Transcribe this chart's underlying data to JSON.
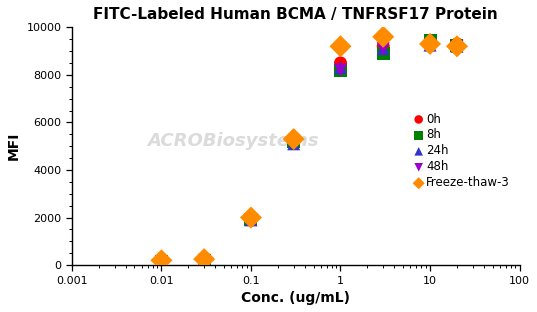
{
  "title": "FITC-Labeled Human BCMA / TNFRSF17 Protein",
  "xlabel": "Conc. (ug/mL)",
  "ylabel": "MFI",
  "xlim": [
    0.001,
    100
  ],
  "ylim": [
    0,
    10000
  ],
  "yticks": [
    0,
    2000,
    4000,
    6000,
    8000,
    10000
  ],
  "series": [
    {
      "label": "0h",
      "color": "#FF0000",
      "line_color": "#FF0000",
      "marker": "o",
      "markersize": 5,
      "x": [
        0.01,
        0.03,
        0.1,
        0.3,
        1.0,
        3.0,
        10.0,
        20.0
      ],
      "y": [
        150,
        200,
        1900,
        5200,
        8500,
        9200,
        9300,
        9300
      ]
    },
    {
      "label": "8h",
      "color": "#008000",
      "line_color": "#008000",
      "marker": "s",
      "markersize": 5,
      "x": [
        0.01,
        0.03,
        0.1,
        0.3,
        1.0,
        3.0,
        10.0,
        20.0
      ],
      "y": [
        150,
        200,
        1900,
        5200,
        8200,
        8900,
        9450,
        9250
      ]
    },
    {
      "label": "24h",
      "color": "#3333CC",
      "line_color": "#3333CC",
      "marker": "^",
      "markersize": 5,
      "x": [
        0.01,
        0.03,
        0.1,
        0.3,
        1.0,
        3.0,
        10.0,
        20.0
      ],
      "y": [
        150,
        200,
        1900,
        5100,
        8300,
        9100,
        9250,
        9200
      ]
    },
    {
      "label": "48h",
      "color": "#9900CC",
      "line_color": "#9900CC",
      "marker": "v",
      "markersize": 5,
      "x": [
        0.01,
        0.03,
        0.1,
        0.3,
        1.0,
        3.0,
        10.0,
        20.0
      ],
      "y": [
        150,
        200,
        1900,
        5200,
        8200,
        9100,
        9200,
        9200
      ]
    },
    {
      "label": "Freeze-thaw-3",
      "color": "#FF8C00",
      "line_color": "#FF8C00",
      "marker": "D",
      "markersize": 6,
      "x": [
        0.01,
        0.03,
        0.1,
        0.3,
        1.0,
        3.0,
        10.0,
        20.0
      ],
      "y": [
        200,
        250,
        2000,
        5300,
        9200,
        9600,
        9300,
        9200
      ]
    }
  ],
  "watermark_text": "ACROBiosystems",
  "background_color": "#ffffff",
  "title_fontsize": 11,
  "axis_label_fontsize": 10,
  "tick_fontsize": 8,
  "legend_fontsize": 8.5
}
